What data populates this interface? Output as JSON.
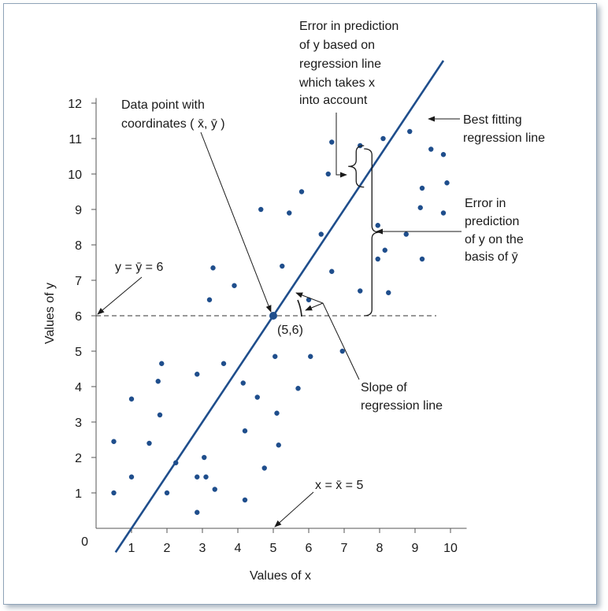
{
  "chart_data": {
    "type": "scatter",
    "xlabel": "Values of x",
    "ylabel": "Values of y",
    "xlim": [
      0,
      10.5
    ],
    "ylim": [
      0,
      12.3
    ],
    "xticks": [
      "1",
      "2",
      "3",
      "4",
      "5",
      "6",
      "7",
      "8",
      "9",
      "10"
    ],
    "yticks": [
      "1",
      "2",
      "3",
      "4",
      "5",
      "6",
      "7",
      "8",
      "9",
      "10",
      "11",
      "12"
    ],
    "origin_label": "0",
    "grid": false,
    "colors": {
      "points": "#1f4e8c",
      "line": "#1f4e8c",
      "text": "#1a1a1a"
    },
    "regression_line": {
      "slope": 1.5,
      "intercept": -1.5,
      "x_start": 0.55,
      "x_end": 9.8
    },
    "mean_point": {
      "x": 5,
      "y": 6,
      "label": "(5,6)"
    },
    "mean_y": 6,
    "mean_x": 5,
    "points": [
      {
        "x": 0.5,
        "y": 2.45
      },
      {
        "x": 0.5,
        "y": 1.0
      },
      {
        "x": 1.0,
        "y": 1.45
      },
      {
        "x": 1.0,
        "y": 3.65
      },
      {
        "x": 1.5,
        "y": 2.4
      },
      {
        "x": 1.75,
        "y": 4.15
      },
      {
        "x": 1.8,
        "y": 3.2
      },
      {
        "x": 1.85,
        "y": 4.65
      },
      {
        "x": 2.0,
        "y": 1.0
      },
      {
        "x": 2.25,
        "y": 1.85
      },
      {
        "x": 2.85,
        "y": 4.35
      },
      {
        "x": 2.85,
        "y": 1.45
      },
      {
        "x": 2.85,
        "y": 0.45
      },
      {
        "x": 3.05,
        "y": 2.0
      },
      {
        "x": 3.1,
        "y": 1.45
      },
      {
        "x": 3.2,
        "y": 6.45
      },
      {
        "x": 3.3,
        "y": 7.35
      },
      {
        "x": 3.35,
        "y": 1.1
      },
      {
        "x": 3.6,
        "y": 4.65
      },
      {
        "x": 3.9,
        "y": 6.85
      },
      {
        "x": 4.15,
        "y": 4.1
      },
      {
        "x": 4.2,
        "y": 2.75
      },
      {
        "x": 4.2,
        "y": 0.8
      },
      {
        "x": 4.55,
        "y": 3.7
      },
      {
        "x": 4.65,
        "y": 9.0
      },
      {
        "x": 4.75,
        "y": 1.7
      },
      {
        "x": 5.05,
        "y": 4.85
      },
      {
        "x": 5.1,
        "y": 3.25
      },
      {
        "x": 5.15,
        "y": 2.35
      },
      {
        "x": 5.25,
        "y": 7.4
      },
      {
        "x": 5.45,
        "y": 8.9
      },
      {
        "x": 5.7,
        "y": 3.95
      },
      {
        "x": 5.8,
        "y": 9.5
      },
      {
        "x": 6.0,
        "y": 6.45
      },
      {
        "x": 6.05,
        "y": 4.85
      },
      {
        "x": 6.35,
        "y": 8.3
      },
      {
        "x": 6.55,
        "y": 10.0
      },
      {
        "x": 6.65,
        "y": 10.9
      },
      {
        "x": 6.65,
        "y": 7.25
      },
      {
        "x": 6.95,
        "y": 5.0
      },
      {
        "x": 7.45,
        "y": 10.8
      },
      {
        "x": 7.45,
        "y": 6.7
      },
      {
        "x": 7.95,
        "y": 8.55
      },
      {
        "x": 7.95,
        "y": 7.6
      },
      {
        "x": 8.1,
        "y": 11.0
      },
      {
        "x": 8.15,
        "y": 7.85
      },
      {
        "x": 8.25,
        "y": 6.65
      },
      {
        "x": 8.75,
        "y": 8.3
      },
      {
        "x": 8.85,
        "y": 11.2
      },
      {
        "x": 9.15,
        "y": 9.05
      },
      {
        "x": 9.2,
        "y": 9.6
      },
      {
        "x": 9.2,
        "y": 7.6
      },
      {
        "x": 9.45,
        "y": 10.7
      },
      {
        "x": 9.8,
        "y": 10.55
      },
      {
        "x": 9.8,
        "y": 8.9
      },
      {
        "x": 9.9,
        "y": 9.75
      }
    ],
    "annotations": {
      "data_point": [
        "Data point with",
        "coordinates ( x̄, ȳ )"
      ],
      "error_regression": [
        "Error in prediction",
        "of y based on",
        "regression line",
        "which takes x",
        "into account"
      ],
      "best_fit": [
        "Best fitting",
        "regression line"
      ],
      "error_mean": [
        "Error in",
        "prediction",
        "of y on the",
        "basis of ȳ"
      ],
      "slope": [
        "Slope of",
        "regression line"
      ],
      "y_mean_eq": "y = ȳ = 6",
      "x_mean_eq": "x = x̄ = 5"
    }
  }
}
